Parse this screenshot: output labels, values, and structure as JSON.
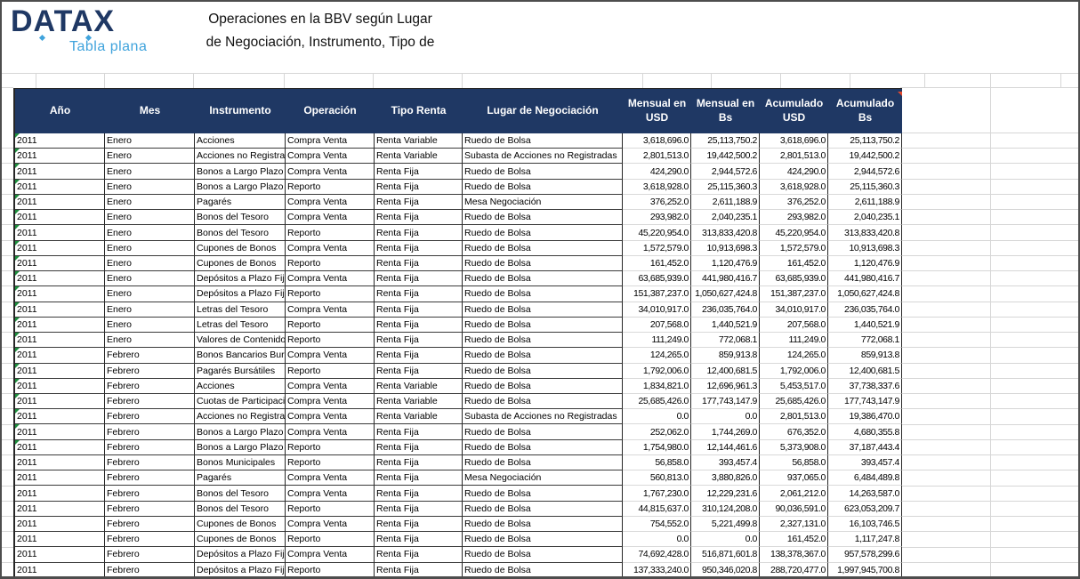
{
  "brand": {
    "name": "DATAX",
    "tagline": "Tabla plana"
  },
  "title": {
    "line1": "Operaciones en la BBV según Lugar",
    "line2": "de Negociación, Instrumento, Tipo de"
  },
  "colors": {
    "header_bg": "#1F3864",
    "brand_navy": "#1F3864",
    "brand_light_blue": "#3FA3DC",
    "error_flag_green": "#1E8F3E",
    "comment_marker_red": "#E8492C",
    "gridline_gray": "#d6d6d6"
  },
  "table": {
    "columns": [
      {
        "key": "ano",
        "label": "Año",
        "width": 101,
        "align": "left"
      },
      {
        "key": "mes",
        "label": "Mes",
        "width": 101,
        "align": "left"
      },
      {
        "key": "instrumento",
        "label": "Instrumento",
        "width": 102,
        "align": "left"
      },
      {
        "key": "operacion",
        "label": "Operación",
        "width": 100,
        "align": "left"
      },
      {
        "key": "tipo_renta",
        "label": "Tipo Renta",
        "width": 99,
        "align": "left"
      },
      {
        "key": "lugar_negociacion",
        "label": "Lugar de Negociación",
        "width": 180,
        "align": "left"
      },
      {
        "key": "mensual_usd",
        "label": "Mensual en USD",
        "width": 77,
        "align": "right"
      },
      {
        "key": "mensual_bs",
        "label": "Mensual en Bs",
        "width": 77,
        "align": "right"
      },
      {
        "key": "acumulado_usd",
        "label": "Acumulado USD",
        "width": 77,
        "align": "right"
      },
      {
        "key": "acumulado_bs",
        "label": "Acumulado Bs",
        "width": 83,
        "align": "right",
        "marker": "red-corner"
      }
    ],
    "rows": [
      {
        "flag": true,
        "cells": [
          "2011",
          "Enero",
          "Acciones",
          "Compra Venta",
          "Renta Variable",
          "Ruedo de Bolsa",
          "3,618,696.0",
          "25,113,750.2",
          "3,618,696.0",
          "25,113,750.2"
        ]
      },
      {
        "flag": true,
        "cells": [
          "2011",
          "Enero",
          "Acciones no Registrad",
          "Compra Venta",
          "Renta Variable",
          "Subasta de Acciones no Registradas",
          "2,801,513.0",
          "19,442,500.2",
          "2,801,513.0",
          "19,442,500.2"
        ]
      },
      {
        "flag": true,
        "cells": [
          "2011",
          "Enero",
          "Bonos a Largo Plazo",
          "Compra Venta",
          "Renta Fija",
          "Ruedo de Bolsa",
          "424,290.0",
          "2,944,572.6",
          "424,290.0",
          "2,944,572.6"
        ]
      },
      {
        "flag": true,
        "cells": [
          "2011",
          "Enero",
          "Bonos a Largo Plazo",
          "Reporto",
          "Renta Fija",
          "Ruedo de Bolsa",
          "3,618,928.0",
          "25,115,360.3",
          "3,618,928.0",
          "25,115,360.3"
        ]
      },
      {
        "flag": true,
        "cells": [
          "2011",
          "Enero",
          "Pagarés",
          "Compra Venta",
          "Renta Fija",
          "Mesa Negociación",
          "376,252.0",
          "2,611,188.9",
          "376,252.0",
          "2,611,188.9"
        ]
      },
      {
        "flag": true,
        "cells": [
          "2011",
          "Enero",
          "Bonos del Tesoro",
          "Compra Venta",
          "Renta Fija",
          "Ruedo de Bolsa",
          "293,982.0",
          "2,040,235.1",
          "293,982.0",
          "2,040,235.1"
        ]
      },
      {
        "flag": true,
        "cells": [
          "2011",
          "Enero",
          "Bonos del Tesoro",
          "Reporto",
          "Renta Fija",
          "Ruedo de Bolsa",
          "45,220,954.0",
          "313,833,420.8",
          "45,220,954.0",
          "313,833,420.8"
        ]
      },
      {
        "flag": true,
        "cells": [
          "2011",
          "Enero",
          "Cupones de Bonos",
          "Compra Venta",
          "Renta Fija",
          "Ruedo de Bolsa",
          "1,572,579.0",
          "10,913,698.3",
          "1,572,579.0",
          "10,913,698.3"
        ]
      },
      {
        "flag": true,
        "cells": [
          "2011",
          "Enero",
          "Cupones de Bonos",
          "Reporto",
          "Renta Fija",
          "Ruedo de Bolsa",
          "161,452.0",
          "1,120,476.9",
          "161,452.0",
          "1,120,476.9"
        ]
      },
      {
        "flag": true,
        "cells": [
          "2011",
          "Enero",
          "Depósitos a Plazo Fij",
          "Compra Venta",
          "Renta Fija",
          "Ruedo de Bolsa",
          "63,685,939.0",
          "441,980,416.7",
          "63,685,939.0",
          "441,980,416.7"
        ]
      },
      {
        "flag": true,
        "cells": [
          "2011",
          "Enero",
          "Depósitos a Plazo Fij",
          "Reporto",
          "Renta Fija",
          "Ruedo de Bolsa",
          "151,387,237.0",
          "1,050,627,424.8",
          "151,387,237.0",
          "1,050,627,424.8"
        ]
      },
      {
        "flag": true,
        "cells": [
          "2011",
          "Enero",
          "Letras del Tesoro",
          "Compra Venta",
          "Renta Fija",
          "Ruedo de Bolsa",
          "34,010,917.0",
          "236,035,764.0",
          "34,010,917.0",
          "236,035,764.0"
        ]
      },
      {
        "flag": true,
        "cells": [
          "2011",
          "Enero",
          "Letras del Tesoro",
          "Reporto",
          "Renta Fija",
          "Ruedo de Bolsa",
          "207,568.0",
          "1,440,521.9",
          "207,568.0",
          "1,440,521.9"
        ]
      },
      {
        "flag": true,
        "cells": [
          "2011",
          "Enero",
          "Valores de Contenido",
          "Reporto",
          "Renta Fija",
          "Ruedo de Bolsa",
          "111,249.0",
          "772,068.1",
          "111,249.0",
          "772,068.1"
        ]
      },
      {
        "flag": true,
        "cells": [
          "2011",
          "Febrero",
          "Bonos Bancarios Burs",
          "Compra Venta",
          "Renta Fija",
          "Ruedo de Bolsa",
          "124,265.0",
          "859,913.8",
          "124,265.0",
          "859,913.8"
        ]
      },
      {
        "flag": true,
        "cells": [
          "2011",
          "Febrero",
          "Pagarés Bursátiles",
          "Reporto",
          "Renta Fija",
          "Ruedo de Bolsa",
          "1,792,006.0",
          "12,400,681.5",
          "1,792,006.0",
          "12,400,681.5"
        ]
      },
      {
        "flag": true,
        "cells": [
          "2011",
          "Febrero",
          "Acciones",
          "Compra Venta",
          "Renta Variable",
          "Ruedo de Bolsa",
          "1,834,821.0",
          "12,696,961.3",
          "5,453,517.0",
          "37,738,337.6"
        ]
      },
      {
        "flag": true,
        "cells": [
          "2011",
          "Febrero",
          "Cuotas de Participaci",
          "Compra Venta",
          "Renta Variable",
          "Ruedo de Bolsa",
          "25,685,426.0",
          "177,743,147.9",
          "25,685,426.0",
          "177,743,147.9"
        ]
      },
      {
        "flag": true,
        "cells": [
          "2011",
          "Febrero",
          "Acciones no Registrad",
          "Compra Venta",
          "Renta Variable",
          "Subasta de Acciones no Registradas",
          "0.0",
          "0.0",
          "2,801,513.0",
          "19,386,470.0"
        ]
      },
      {
        "flag": true,
        "cells": [
          "2011",
          "Febrero",
          "Bonos a Largo Plazo",
          "Compra Venta",
          "Renta Fija",
          "Ruedo de Bolsa",
          "252,062.0",
          "1,744,269.0",
          "676,352.0",
          "4,680,355.8"
        ]
      },
      {
        "flag": true,
        "cells": [
          "2011",
          "Febrero",
          "Bonos a Largo Plazo",
          "Reporto",
          "Renta Fija",
          "Ruedo de Bolsa",
          "1,754,980.0",
          "12,144,461.6",
          "5,373,908.0",
          "37,187,443.4"
        ]
      },
      {
        "flag": false,
        "cells": [
          "2011",
          "Febrero",
          "Bonos Municipales",
          "Reporto",
          "Renta Fija",
          "Ruedo de Bolsa",
          "56,858.0",
          "393,457.4",
          "56,858.0",
          "393,457.4"
        ]
      },
      {
        "flag": false,
        "cells": [
          "2011",
          "Febrero",
          "Pagarés",
          "Compra Venta",
          "Renta Fija",
          "Mesa Negociación",
          "560,813.0",
          "3,880,826.0",
          "937,065.0",
          "6,484,489.8"
        ]
      },
      {
        "flag": false,
        "cells": [
          "2011",
          "Febrero",
          "Bonos del Tesoro",
          "Compra Venta",
          "Renta Fija",
          "Ruedo de Bolsa",
          "1,767,230.0",
          "12,229,231.6",
          "2,061,212.0",
          "14,263,587.0"
        ]
      },
      {
        "flag": false,
        "cells": [
          "2011",
          "Febrero",
          "Bonos del Tesoro",
          "Reporto",
          "Renta Fija",
          "Ruedo de Bolsa",
          "44,815,637.0",
          "310,124,208.0",
          "90,036,591.0",
          "623,053,209.7"
        ]
      },
      {
        "flag": false,
        "cells": [
          "2011",
          "Febrero",
          "Cupones de Bonos",
          "Compra Venta",
          "Renta Fija",
          "Ruedo de Bolsa",
          "754,552.0",
          "5,221,499.8",
          "2,327,131.0",
          "16,103,746.5"
        ]
      },
      {
        "flag": false,
        "cells": [
          "2011",
          "Febrero",
          "Cupones de Bonos",
          "Reporto",
          "Renta Fija",
          "Ruedo de Bolsa",
          "0.0",
          "0.0",
          "161,452.0",
          "1,117,247.8"
        ]
      },
      {
        "flag": false,
        "cells": [
          "2011",
          "Febrero",
          "Depósitos a Plazo Fij",
          "Compra Venta",
          "Renta Fija",
          "Ruedo de Bolsa",
          "74,692,428.0",
          "516,871,601.8",
          "138,378,367.0",
          "957,578,299.6"
        ]
      },
      {
        "flag": false,
        "cells": [
          "2011",
          "Febrero",
          "Depósitos a Plazo Fij",
          "Reporto",
          "Renta Fija",
          "Ruedo de Bolsa",
          "137,333,240.0",
          "950,346,020.8",
          "288,720,477.0",
          "1,997,945,700.8"
        ]
      }
    ]
  }
}
